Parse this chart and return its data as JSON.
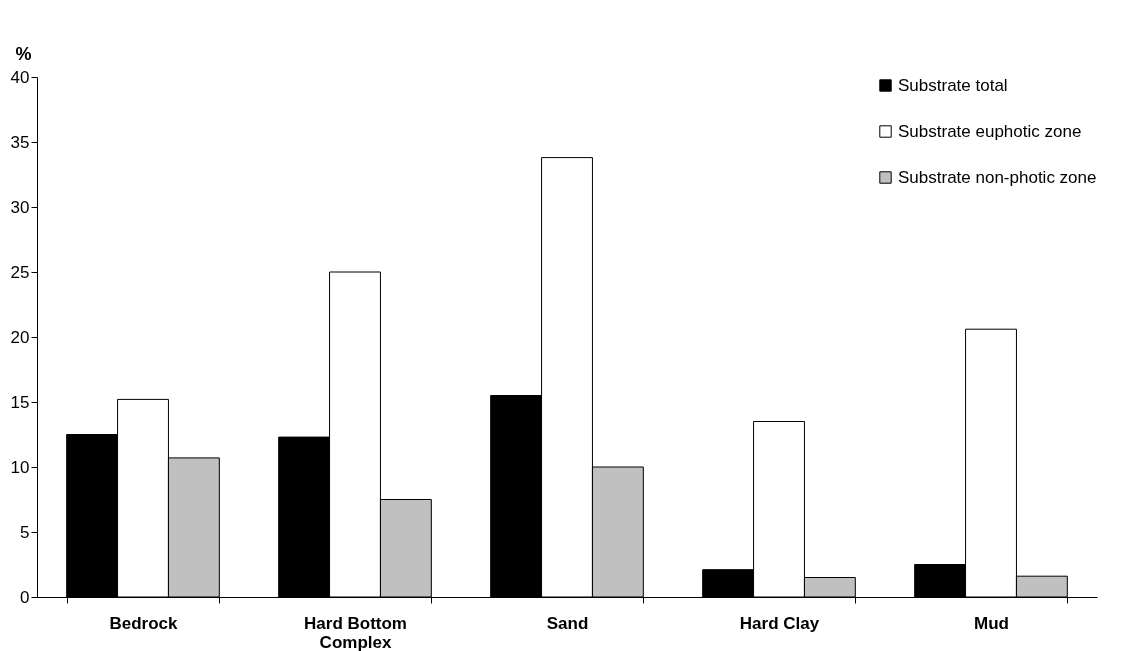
{
  "chart_data": {
    "type": "bar",
    "ylabel": "%",
    "categories": [
      "Bedrock",
      "Hard Bottom Complex",
      "Sand",
      "Hard Clay",
      "Mud"
    ],
    "series": [
      {
        "name": "Substrate total",
        "color": "#000000",
        "values": [
          12.5,
          12.3,
          15.5,
          2.1,
          2.5
        ]
      },
      {
        "name": "Substrate euphotic zone",
        "color": "#ffffff",
        "values": [
          15.2,
          25.0,
          33.8,
          13.5,
          20.6
        ]
      },
      {
        "name": "Substrate non-photic zone",
        "color": "#c0c0c0",
        "values": [
          10.7,
          7.5,
          10.0,
          1.5,
          1.6
        ]
      }
    ],
    "ylim": [
      0,
      40
    ],
    "yticks": [
      0,
      5,
      10,
      15,
      20,
      25,
      30,
      35,
      40
    ],
    "grid": false,
    "legend": "top right"
  }
}
